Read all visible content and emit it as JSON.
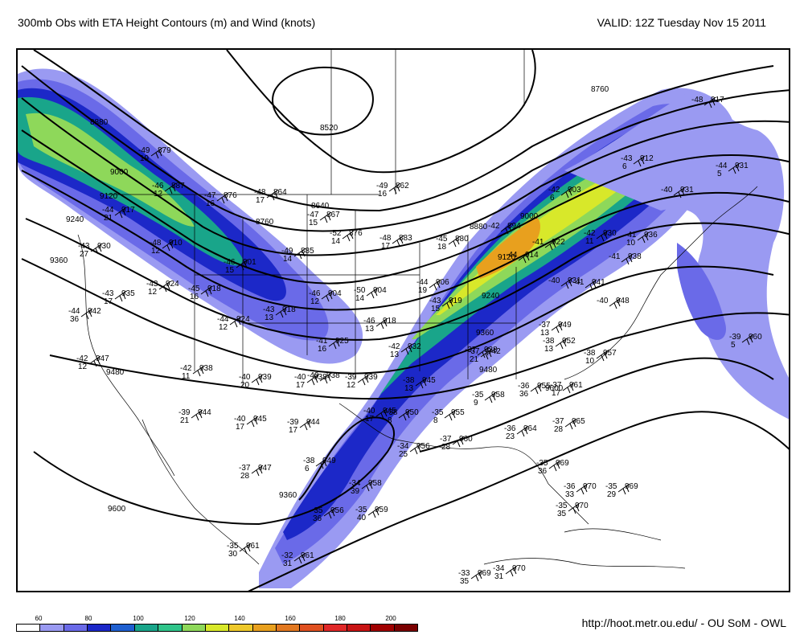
{
  "header": {
    "title": "300mb Obs with ETA Height Contours (m) and Wind (knots)",
    "valid": "VALID: 12Z Tuesday Nov 15 2011"
  },
  "footer": {
    "credit": "http://hoot.metr.ou.edu/ - OU SoM - OWL"
  },
  "colorbar": {
    "colors": [
      "#ffffff",
      "#9a9af2",
      "#6a6ae8",
      "#1c28c8",
      "#1f5fd0",
      "#19a58a",
      "#2fc48a",
      "#8ed85a",
      "#d8e82a",
      "#eec82a",
      "#e8a01e",
      "#e27820",
      "#e05020",
      "#e02828",
      "#c81414",
      "#a00000",
      "#7a0000"
    ],
    "labels": [
      "60",
      "80",
      "100",
      "120",
      "140",
      "160",
      "180",
      "200"
    ]
  },
  "contours": [
    {
      "label": "8520"
    },
    {
      "label": "8640"
    },
    {
      "label": "8760"
    },
    {
      "label": "8880"
    },
    {
      "label": "9000"
    },
    {
      "label": "9120"
    },
    {
      "label": "9240"
    },
    {
      "label": "9360"
    },
    {
      "label": "9480"
    },
    {
      "label": "9600"
    }
  ],
  "stations": [
    {
      "t": "-49",
      "h": "879",
      "d": "19"
    },
    {
      "t": "-46",
      "h": "887",
      "d": "12"
    },
    {
      "t": "-47",
      "h": "876",
      "d": "16"
    },
    {
      "t": "-48",
      "h": "864",
      "d": "17"
    },
    {
      "t": "-47",
      "h": "867",
      "d": "15"
    },
    {
      "t": "-49",
      "h": "862",
      "d": "16"
    },
    {
      "t": "-43",
      "h": "930",
      "d": "27"
    },
    {
      "t": "-44",
      "h": "917",
      "d": "21"
    },
    {
      "t": "-48",
      "h": "910",
      "d": "12"
    },
    {
      "t": "-46",
      "h": "901",
      "d": "15"
    },
    {
      "t": "-49",
      "h": "885",
      "d": "14"
    },
    {
      "t": "-52",
      "h": "876",
      "d": "14"
    },
    {
      "t": "-48",
      "h": "883",
      "d": "17"
    },
    {
      "t": "-45",
      "h": "880",
      "d": "18"
    },
    {
      "t": "-43",
      "h": "935",
      "d": "17"
    },
    {
      "t": "-44",
      "h": "942",
      "d": "36"
    },
    {
      "t": "-43",
      "h": "924",
      "d": "12"
    },
    {
      "t": "-45",
      "h": "918",
      "d": "16"
    },
    {
      "t": "-44",
      "h": "924",
      "d": "12"
    },
    {
      "t": "-43",
      "h": "918",
      "d": "13"
    },
    {
      "t": "-46",
      "h": "904",
      "d": "12"
    },
    {
      "t": "-50",
      "h": "904",
      "d": "14"
    },
    {
      "t": "-44",
      "h": "906",
      "d": "19"
    },
    {
      "t": "-43",
      "h": "919",
      "d": "15"
    },
    {
      "t": "-41",
      "h": "925",
      "d": "16"
    },
    {
      "t": "-46",
      "h": "918",
      "d": "13"
    },
    {
      "t": "-42",
      "h": "932",
      "d": "13"
    },
    {
      "t": "-42",
      "h": "947",
      "d": "12"
    },
    {
      "t": "-42",
      "h": "938",
      "d": "11"
    },
    {
      "t": "-40",
      "h": "939",
      "d": "20"
    },
    {
      "t": "-40",
      "h": "938",
      "d": "17"
    },
    {
      "t": "-39",
      "h": "939",
      "d": "12"
    },
    {
      "t": "-38",
      "h": "945",
      "d": "13"
    },
    {
      "t": "-37",
      "h": "942",
      "d": "21"
    },
    {
      "t": "-39",
      "h": "944",
      "d": "21"
    },
    {
      "t": "-40",
      "h": "945",
      "d": "17"
    },
    {
      "t": "-39",
      "h": "944",
      "d": "17"
    },
    {
      "t": "-40",
      "h": "945",
      "d": "17"
    },
    {
      "t": "-38",
      "h": "950",
      "d": "8"
    },
    {
      "t": "-35",
      "h": "955",
      "d": "8"
    },
    {
      "t": "-35",
      "h": "958",
      "d": "9"
    },
    {
      "t": "-36",
      "h": "955",
      "d": "36"
    },
    {
      "t": "-37",
      "h": "961",
      "d": "17"
    },
    {
      "t": "-37",
      "h": "965",
      "d": "28"
    },
    {
      "t": "-36",
      "h": "964",
      "d": "23"
    },
    {
      "t": "-34",
      "h": "956",
      "d": "25"
    },
    {
      "t": "-37",
      "h": "960",
      "d": "28"
    },
    {
      "t": "-37",
      "h": "947",
      "d": "28"
    },
    {
      "t": "-38",
      "h": "949",
      "d": "6"
    },
    {
      "t": "-34",
      "h": "958",
      "d": "39"
    },
    {
      "t": "-35",
      "h": "956",
      "d": "36"
    },
    {
      "t": "-35",
      "h": "959",
      "d": "40"
    },
    {
      "t": "-35",
      "h": "961",
      "d": "30"
    },
    {
      "t": "-32",
      "h": "961",
      "d": "31"
    },
    {
      "t": "-35",
      "h": "969",
      "d": "36"
    },
    {
      "t": "-36",
      "h": "970",
      "d": "33"
    },
    {
      "t": "-35",
      "h": "969",
      "d": "29"
    },
    {
      "t": "-35",
      "h": "970",
      "d": "35"
    },
    {
      "t": "-33",
      "h": "969",
      "d": "35"
    },
    {
      "t": "-34",
      "h": "970",
      "d": "31"
    },
    {
      "t": "-42",
      "h": "903",
      "d": "6"
    },
    {
      "t": "-43",
      "h": "912",
      "d": "6"
    },
    {
      "t": "-48",
      "h": "917",
      "d": ""
    },
    {
      "t": "-44",
      "h": "931",
      "d": "5"
    },
    {
      "t": "-40",
      "h": "931",
      "d": ""
    },
    {
      "t": "-42",
      "h": "930",
      "d": "11"
    },
    {
      "t": "-41",
      "h": "936",
      "d": "10"
    },
    {
      "t": "-41",
      "h": "938",
      "d": ""
    },
    {
      "t": "-41",
      "h": "922",
      "d": ""
    },
    {
      "t": "-42",
      "h": "894",
      "d": ""
    },
    {
      "t": "-44",
      "h": "914",
      "d": ""
    },
    {
      "t": "-40",
      "h": "931",
      "d": ""
    },
    {
      "t": "-41",
      "h": "941",
      "d": ""
    },
    {
      "t": "-40",
      "h": "948",
      "d": ""
    },
    {
      "t": "-37",
      "h": "949",
      "d": "13"
    },
    {
      "t": "-38",
      "h": "952",
      "d": "13"
    },
    {
      "t": "-38",
      "h": "957",
      "d": "10"
    },
    {
      "t": "-39",
      "h": "960",
      "d": "5"
    },
    {
      "t": "-40",
      "h": "938",
      "d": ""
    },
    {
      "t": "-37",
      "h": "938",
      "d": ""
    }
  ]
}
